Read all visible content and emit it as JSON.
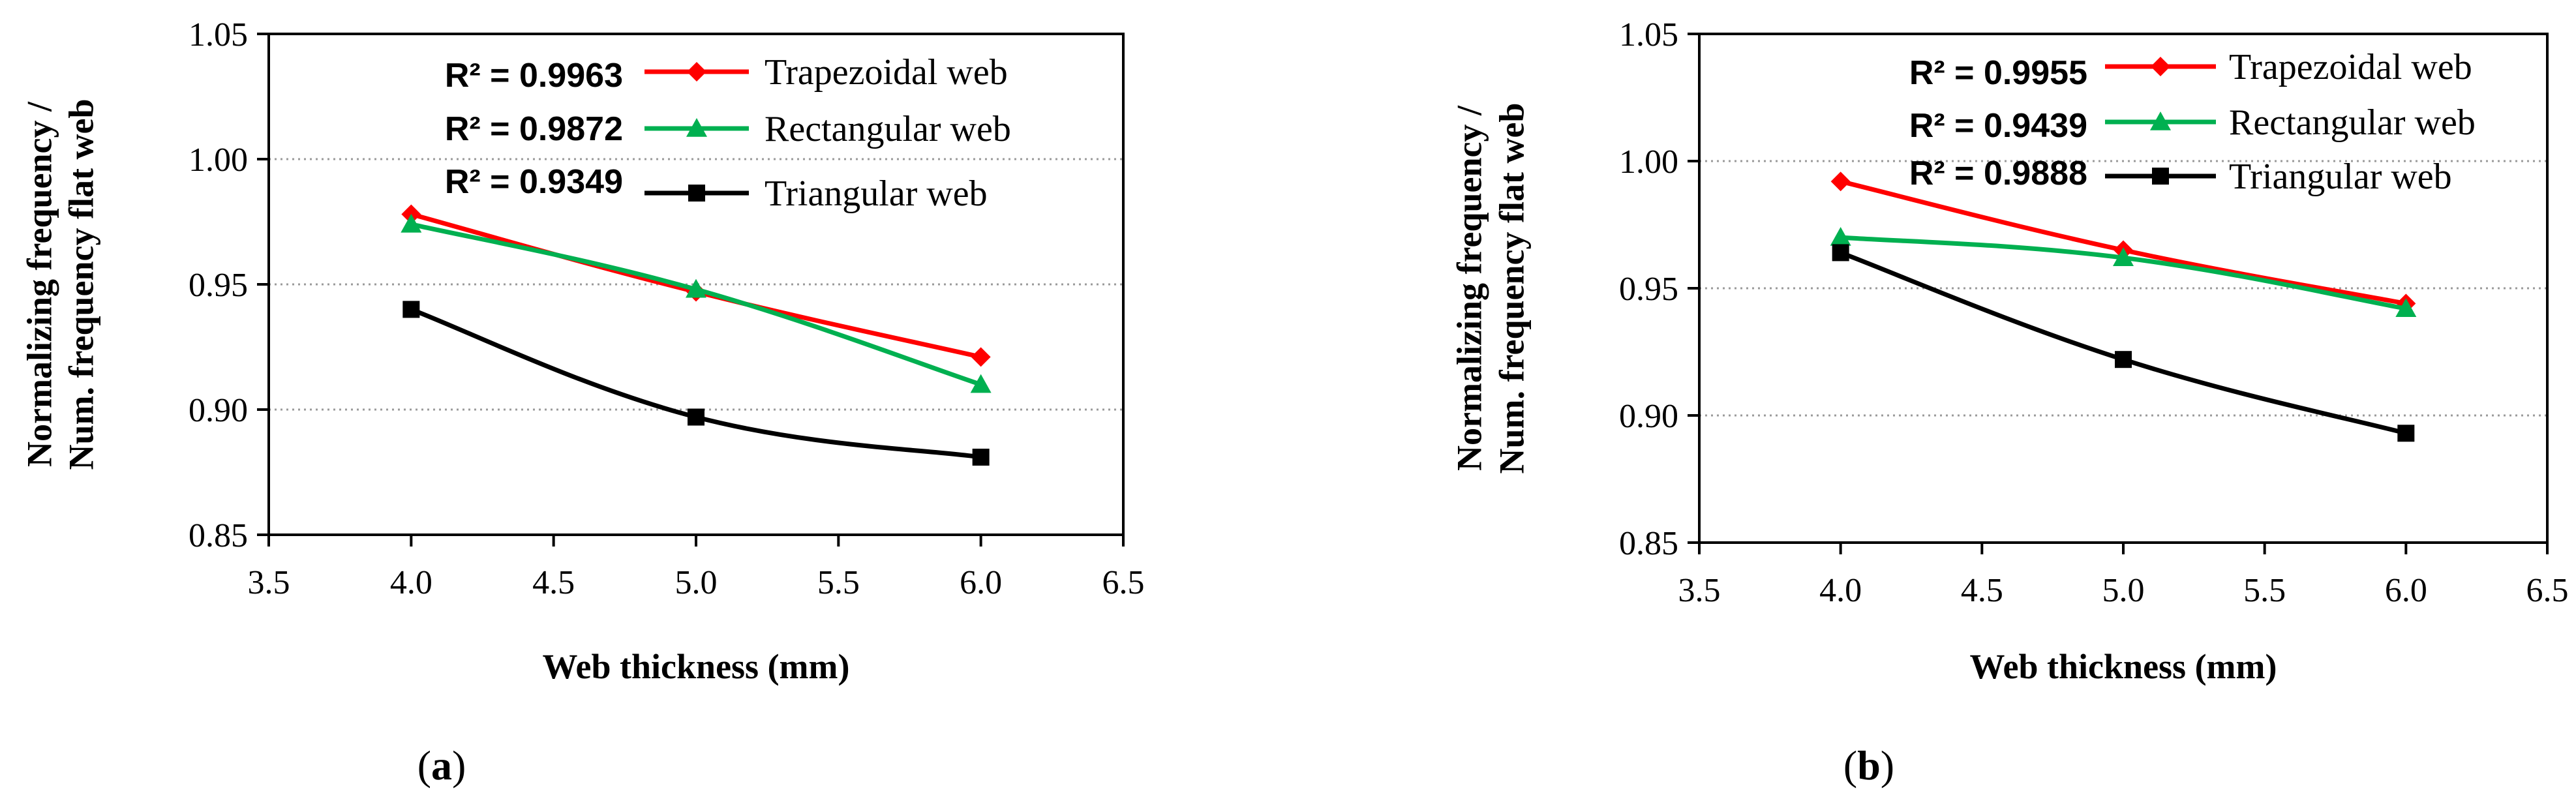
{
  "chart_data": [
    {
      "type": "line",
      "panel_label": "a",
      "xlabel": "Web thickness (mm)",
      "ylabel_lines": [
        "Normalizing frequency /",
        "Num. frequency flat web"
      ],
      "xlim": [
        3.5,
        6.5
      ],
      "ylim": [
        0.85,
        1.05
      ],
      "xticks": [
        "3.5",
        "4.0",
        "4.5",
        "5.0",
        "5.5",
        "6.0",
        "6.5"
      ],
      "yticks": [
        "0.85",
        "0.90",
        "0.95",
        "1.00",
        "1.05"
      ],
      "grid": "horizontal dotted",
      "legend_position": "top-right",
      "r2_labels": [
        "R² = 0.9963",
        "R² = 0.9872",
        "R² = 0.9349"
      ],
      "series": [
        {
          "name": "Trapezoidal web",
          "color": "#ff0000",
          "marker": "diamond",
          "x": [
            4.0,
            5.0,
            6.0
          ],
          "y": [
            0.978,
            0.947,
            0.921
          ]
        },
        {
          "name": "Rectangular web",
          "color": "#00b050",
          "marker": "triangle",
          "x": [
            4.0,
            5.0,
            6.0
          ],
          "y": [
            0.974,
            0.948,
            0.91
          ]
        },
        {
          "name": "Triangular web",
          "color": "#000000",
          "marker": "square",
          "x": [
            4.0,
            5.0,
            6.0
          ],
          "y": [
            0.94,
            0.897,
            0.881
          ]
        }
      ]
    },
    {
      "type": "line",
      "panel_label": "b",
      "xlabel": "Web thickness (mm)",
      "ylabel_lines": [
        "Normalizing frequency /",
        "Num. frequency flat web"
      ],
      "xlim": [
        3.5,
        6.5
      ],
      "ylim": [
        0.85,
        1.05
      ],
      "xticks": [
        "3.5",
        "4.0",
        "4.5",
        "5.0",
        "5.5",
        "6.0",
        "6.5"
      ],
      "yticks": [
        "0.85",
        "0.90",
        "0.95",
        "1.00",
        "1.05"
      ],
      "grid": "horizontal dotted",
      "legend_position": "top-right",
      "r2_labels": [
        "R² = 0.9955",
        "R² = 0.9439",
        "R² = 0.9888"
      ],
      "series": [
        {
          "name": "Trapezoidal web",
          "color": "#ff0000",
          "marker": "diamond",
          "x": [
            4.0,
            5.0,
            6.0
          ],
          "y": [
            0.992,
            0.965,
            0.944
          ]
        },
        {
          "name": "Rectangular web",
          "color": "#00b050",
          "marker": "triangle",
          "x": [
            4.0,
            5.0,
            6.0
          ],
          "y": [
            0.97,
            0.962,
            0.942
          ]
        },
        {
          "name": "Triangular web",
          "color": "#000000",
          "marker": "square",
          "x": [
            4.0,
            5.0,
            6.0
          ],
          "y": [
            0.964,
            0.922,
            0.893
          ]
        }
      ]
    }
  ]
}
